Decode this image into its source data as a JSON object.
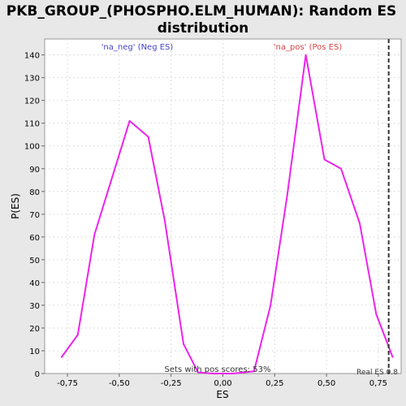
{
  "chart_data": {
    "type": "line",
    "title_line1": "PKB_GROUP_(PHOSPHO.ELM_HUMAN): Random ES",
    "title_line2": "distribution",
    "xlabel": "ES",
    "ylabel": "P(ES)",
    "xlim": [
      -0.86,
      0.86
    ],
    "ylim": [
      0,
      147
    ],
    "x_ticks": [
      -0.75,
      -0.5,
      -0.25,
      0.0,
      0.25,
      0.5,
      0.75
    ],
    "x_tick_labels": [
      "-0,75",
      "-0,50",
      "-0,25",
      "0,00",
      "0,25",
      "0,50",
      "0,75"
    ],
    "y_ticks": [
      0,
      10,
      20,
      30,
      40,
      50,
      60,
      70,
      80,
      90,
      100,
      110,
      120,
      130,
      140
    ],
    "y_tick_labels": [
      "0",
      "10",
      "20",
      "30",
      "40",
      "50",
      "60",
      "70",
      "80",
      "90",
      "100",
      "110",
      "120",
      "130",
      "140"
    ],
    "grid": true,
    "series": [
      {
        "color": "#ee22ee",
        "points": [
          [
            -0.78,
            7
          ],
          [
            -0.7,
            17
          ],
          [
            -0.62,
            61
          ],
          [
            -0.45,
            111
          ],
          [
            -0.36,
            104
          ],
          [
            -0.28,
            67
          ],
          [
            -0.19,
            13
          ],
          [
            -0.12,
            0.5
          ],
          [
            -0.05,
            0
          ],
          [
            0.05,
            0
          ],
          [
            0.15,
            1
          ],
          [
            0.23,
            30
          ],
          [
            0.31,
            78
          ],
          [
            0.4,
            140
          ],
          [
            0.49,
            94
          ],
          [
            0.57,
            90
          ],
          [
            0.66,
            66
          ],
          [
            0.74,
            26
          ],
          [
            0.82,
            7
          ]
        ]
      }
    ],
    "real_es": {
      "value": 0.8,
      "label": "Real ES 0.8"
    },
    "annotations": {
      "neg": {
        "text": "'na_neg' (Neg ES)",
        "color": "#4444cc"
      },
      "pos": {
        "text": "'na_pos' (Pos ES)",
        "color": "#dd4444"
      },
      "pos_scores": {
        "text": "Sets with pos scores: 53%"
      }
    }
  }
}
